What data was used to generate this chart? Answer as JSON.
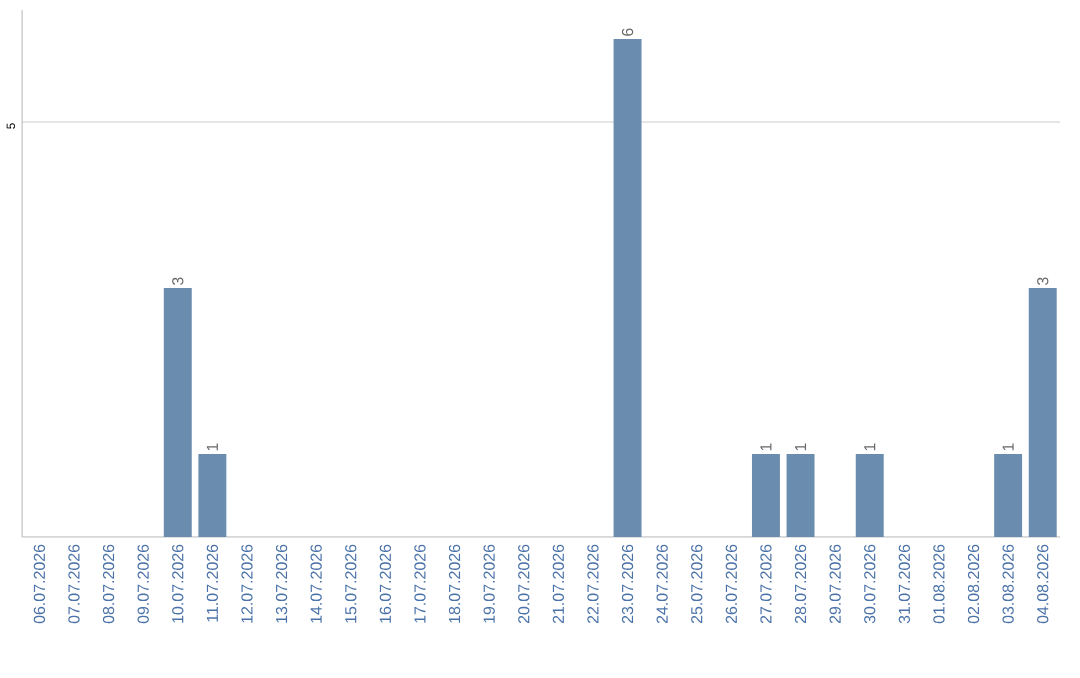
{
  "chart_data": {
    "type": "bar",
    "categories": [
      "06.07.2026",
      "07.07.2026",
      "08.07.2026",
      "09.07.2026",
      "10.07.2026",
      "11.07.2026",
      "12.07.2026",
      "13.07.2026",
      "14.07.2026",
      "15.07.2026",
      "16.07.2026",
      "17.07.2026",
      "18.07.2026",
      "19.07.2026",
      "20.07.2026",
      "21.07.2026",
      "22.07.2026",
      "23.07.2026",
      "24.07.2026",
      "25.07.2026",
      "26.07.2026",
      "27.07.2026",
      "28.07.2026",
      "29.07.2026",
      "30.07.2026",
      "31.07.2026",
      "01.08.2026",
      "02.08.2026",
      "03.08.2026",
      "04.08.2026"
    ],
    "values": [
      0,
      0,
      0,
      0,
      3,
      1,
      0,
      0,
      0,
      0,
      0,
      0,
      0,
      0,
      0,
      0,
      0,
      6,
      0,
      0,
      0,
      1,
      1,
      0,
      1,
      0,
      0,
      0,
      1,
      3
    ],
    "value_labels": [
      null,
      null,
      null,
      null,
      "3",
      "1",
      null,
      null,
      null,
      null,
      null,
      null,
      null,
      null,
      null,
      null,
      null,
      "6",
      null,
      null,
      null,
      "1",
      "1",
      null,
      "1",
      null,
      null,
      null,
      "1",
      "3"
    ],
    "color": "#6a8caf",
    "ylim": [
      0,
      6.35
    ],
    "yticks": [
      5
    ],
    "grid": "y"
  }
}
